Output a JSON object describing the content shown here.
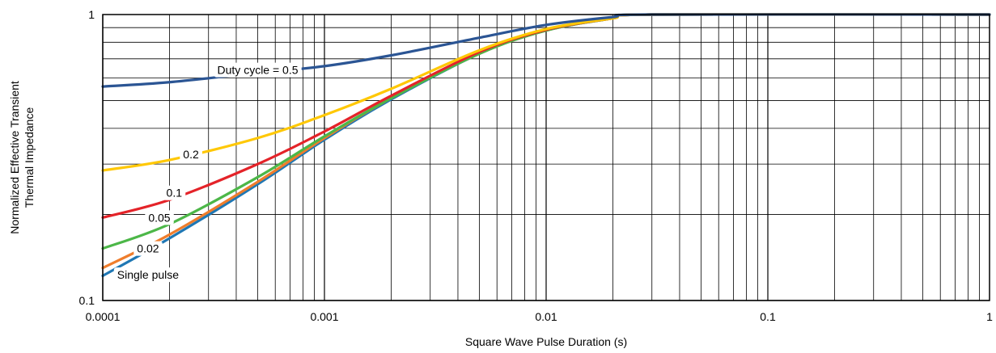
{
  "chart_data": {
    "type": "line",
    "x_scale": "log",
    "y_scale": "log",
    "xlim": [
      0.0001,
      1
    ],
    "ylim": [
      0.1,
      1
    ],
    "grid": true,
    "legend": "none",
    "title": "",
    "xlabel": "Square Wave Pulse Duration (s)",
    "ylabel_lines": [
      "Normalized Effective Transient",
      "Thermal Impedance"
    ],
    "x_ticks": [
      {
        "value": 0.0001,
        "label": "0.0001"
      },
      {
        "value": 0.001,
        "label": "0.001"
      },
      {
        "value": 0.01,
        "label": "0.01"
      },
      {
        "value": 0.1,
        "label": "0.1"
      },
      {
        "value": 1,
        "label": "1"
      }
    ],
    "y_ticks": [
      {
        "value": 0.1,
        "label": "0.1"
      },
      {
        "value": 1,
        "label": "1"
      }
    ],
    "series": [
      {
        "color": "#2b5594",
        "annotation": "Duty cycle = 0.5",
        "annotation_at": [
          0.0005,
          0.64
        ],
        "points": [
          [
            0.0001,
            0.56
          ],
          [
            0.0002,
            0.58
          ],
          [
            0.0005,
            0.625
          ],
          [
            0.001,
            0.66
          ],
          [
            0.002,
            0.72
          ],
          [
            0.005,
            0.83
          ],
          [
            0.01,
            0.92
          ],
          [
            0.02,
            0.98
          ],
          [
            0.03,
            1.0
          ],
          [
            1,
            1.0
          ]
        ]
      },
      {
        "color": "#ffc805",
        "annotation": "0.2",
        "annotation_at": [
          0.00025,
          0.325
        ],
        "points": [
          [
            0.0001,
            0.285
          ],
          [
            0.0002,
            0.31
          ],
          [
            0.0005,
            0.37
          ],
          [
            0.001,
            0.445
          ],
          [
            0.002,
            0.55
          ],
          [
            0.005,
            0.75
          ],
          [
            0.01,
            0.89
          ],
          [
            0.02,
            0.97
          ],
          [
            0.03,
            1.0
          ],
          [
            1,
            1.0
          ]
        ]
      },
      {
        "color": "#e42329",
        "annotation": "0.1",
        "annotation_at": [
          0.00021,
          0.238
        ],
        "points": [
          [
            0.0001,
            0.195
          ],
          [
            0.0002,
            0.225
          ],
          [
            0.0005,
            0.3
          ],
          [
            0.001,
            0.39
          ],
          [
            0.002,
            0.52
          ],
          [
            0.005,
            0.74
          ],
          [
            0.01,
            0.885
          ],
          [
            0.02,
            0.97
          ],
          [
            0.03,
            1.0
          ],
          [
            1,
            1.0
          ]
        ]
      },
      {
        "color": "#4cb748",
        "annotation": "0.05",
        "annotation_at": [
          0.00018,
          0.195
        ],
        "points": [
          [
            0.0001,
            0.152
          ],
          [
            0.0002,
            0.185
          ],
          [
            0.0005,
            0.27
          ],
          [
            0.001,
            0.375
          ],
          [
            0.002,
            0.51
          ],
          [
            0.005,
            0.73
          ],
          [
            0.01,
            0.88
          ],
          [
            0.02,
            0.97
          ],
          [
            0.03,
            1.0
          ],
          [
            1,
            1.0
          ]
        ]
      },
      {
        "color": "#ef7d2c",
        "annotation": "0.02",
        "annotation_at": [
          0.00016,
          0.152
        ],
        "points": [
          [
            0.0001,
            0.13
          ],
          [
            0.0002,
            0.17
          ],
          [
            0.0005,
            0.26
          ],
          [
            0.001,
            0.37
          ],
          [
            0.002,
            0.51
          ],
          [
            0.005,
            0.73
          ],
          [
            0.01,
            0.88
          ],
          [
            0.02,
            0.97
          ],
          [
            0.03,
            1.0
          ],
          [
            1,
            1.0
          ]
        ]
      },
      {
        "color": "#1f77b4",
        "annotation": "Single pulse",
        "annotation_at": [
          0.00016,
          0.123
        ],
        "points": [
          [
            0.0001,
            0.122
          ],
          [
            0.0002,
            0.165
          ],
          [
            0.0005,
            0.255
          ],
          [
            0.001,
            0.365
          ],
          [
            0.002,
            0.505
          ],
          [
            0.005,
            0.73
          ],
          [
            0.01,
            0.88
          ],
          [
            0.02,
            0.97
          ],
          [
            0.03,
            1.0
          ],
          [
            1,
            1.0
          ]
        ]
      }
    ]
  }
}
